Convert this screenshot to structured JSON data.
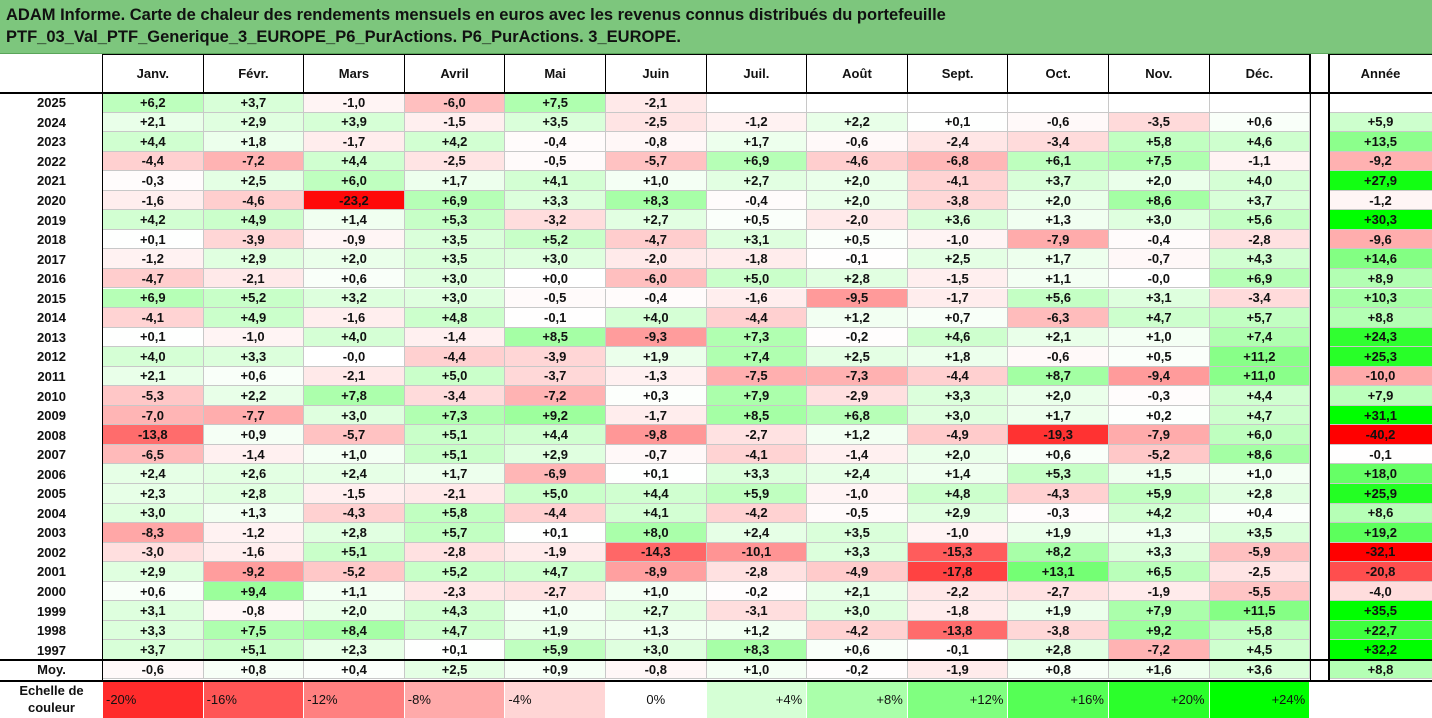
{
  "title": {
    "line1": "ADAM Informe. Carte de chaleur des rendements mensuels en euros avec les revenus connus distribués du portefeuille",
    "line2": "PTF_03_Val_PTF_Generique_3_EUROPE_P6_PurActions. P6_PurActions. 3_EUROPE."
  },
  "chart_data": {
    "type": "heatmap",
    "columns": [
      "Janv.",
      "Févr.",
      "Mars",
      "Avril",
      "Mai",
      "Juin",
      "Juil.",
      "Août",
      "Sept.",
      "Oct.",
      "Nov.",
      "Déc."
    ],
    "year_column": "Année",
    "rows": [
      {
        "year": "2025",
        "months": [
          "+6,2",
          "+3,7",
          "-1,0",
          "-6,0",
          "+7,5",
          "-2,1",
          "",
          "",
          "",
          "",
          "",
          ""
        ],
        "annual": ""
      },
      {
        "year": "2024",
        "months": [
          "+2,1",
          "+2,9",
          "+3,9",
          "-1,5",
          "+3,5",
          "-2,5",
          "-1,2",
          "+2,2",
          "+0,1",
          "-0,6",
          "-3,5",
          "+0,6"
        ],
        "annual": "+5,9"
      },
      {
        "year": "2023",
        "months": [
          "+4,4",
          "+1,8",
          "-1,7",
          "+4,2",
          "-0,4",
          "-0,8",
          "+1,7",
          "-0,6",
          "-2,4",
          "-3,4",
          "+5,8",
          "+4,6"
        ],
        "annual": "+13,5"
      },
      {
        "year": "2022",
        "months": [
          "-4,4",
          "-7,2",
          "+4,4",
          "-2,5",
          "-0,5",
          "-5,7",
          "+6,9",
          "-4,6",
          "-6,8",
          "+6,1",
          "+7,5",
          "-1,1"
        ],
        "annual": "-9,2"
      },
      {
        "year": "2021",
        "months": [
          "-0,3",
          "+2,5",
          "+6,0",
          "+1,7",
          "+4,1",
          "+1,0",
          "+2,7",
          "+2,0",
          "-4,1",
          "+3,7",
          "+2,0",
          "+4,0"
        ],
        "annual": "+27,9"
      },
      {
        "year": "2020",
        "months": [
          "-1,6",
          "-4,6",
          "-23,2",
          "+6,9",
          "+3,3",
          "+8,3",
          "-0,4",
          "+2,0",
          "-3,8",
          "+2,0",
          "+8,6",
          "+3,7"
        ],
        "annual": "-1,2"
      },
      {
        "year": "2019",
        "months": [
          "+4,2",
          "+4,9",
          "+1,4",
          "+5,3",
          "-3,2",
          "+2,7",
          "+0,5",
          "-2,0",
          "+3,6",
          "+1,3",
          "+3,0",
          "+5,6"
        ],
        "annual": "+30,3"
      },
      {
        "year": "2018",
        "months": [
          "+0,1",
          "-3,9",
          "-0,9",
          "+3,5",
          "+5,2",
          "-4,7",
          "+3,1",
          "+0,5",
          "-1,0",
          "-7,9",
          "-0,4",
          "-2,8"
        ],
        "annual": "-9,6"
      },
      {
        "year": "2017",
        "months": [
          "-1,2",
          "+2,9",
          "+2,0",
          "+3,5",
          "+3,0",
          "-2,0",
          "-1,8",
          "-0,1",
          "+2,5",
          "+1,7",
          "-0,7",
          "+4,3"
        ],
        "annual": "+14,6"
      },
      {
        "year": "2016",
        "months": [
          "-4,7",
          "-2,1",
          "+0,6",
          "+3,0",
          "+0,0",
          "-6,0",
          "+5,0",
          "+2,8",
          "-1,5",
          "+1,1",
          "-0,0",
          "+6,9"
        ],
        "annual": "+8,9"
      },
      {
        "year": "2015",
        "months": [
          "+6,9",
          "+5,2",
          "+3,2",
          "+3,0",
          "-0,5",
          "-0,4",
          "-1,6",
          "-9,5",
          "-1,7",
          "+5,6",
          "+3,1",
          "-3,4"
        ],
        "annual": "+10,3"
      },
      {
        "year": "2014",
        "months": [
          "-4,1",
          "+4,9",
          "-1,6",
          "+4,8",
          "-0,1",
          "+4,0",
          "-4,4",
          "+1,2",
          "+0,7",
          "-6,3",
          "+4,7",
          "+5,7"
        ],
        "annual": "+8,8"
      },
      {
        "year": "2013",
        "months": [
          "+0,1",
          "-1,0",
          "+4,0",
          "-1,4",
          "+8,5",
          "-9,3",
          "+7,3",
          "-0,2",
          "+4,6",
          "+2,1",
          "+1,0",
          "+7,4"
        ],
        "annual": "+24,3"
      },
      {
        "year": "2012",
        "months": [
          "+4,0",
          "+3,3",
          "-0,0",
          "-4,4",
          "-3,9",
          "+1,9",
          "+7,4",
          "+2,5",
          "+1,8",
          "-0,6",
          "+0,5",
          "+11,2"
        ],
        "annual": "+25,3"
      },
      {
        "year": "2011",
        "months": [
          "+2,1",
          "+0,6",
          "-2,1",
          "+5,0",
          "-3,7",
          "-1,3",
          "-7,5",
          "-7,3",
          "-4,4",
          "+8,7",
          "-9,4",
          "+11,0"
        ],
        "annual": "-10,0"
      },
      {
        "year": "2010",
        "months": [
          "-5,3",
          "+2,2",
          "+7,8",
          "-3,4",
          "-7,2",
          "+0,3",
          "+7,9",
          "-2,9",
          "+3,3",
          "+2,0",
          "-0,3",
          "+4,4"
        ],
        "annual": "+7,9"
      },
      {
        "year": "2009",
        "months": [
          "-7,0",
          "-7,7",
          "+3,0",
          "+7,3",
          "+9,2",
          "-1,7",
          "+8,5",
          "+6,8",
          "+3,0",
          "+1,7",
          "+0,2",
          "+4,7"
        ],
        "annual": "+31,1"
      },
      {
        "year": "2008",
        "months": [
          "-13,8",
          "+0,9",
          "-5,7",
          "+5,1",
          "+4,4",
          "-9,8",
          "-2,7",
          "+1,2",
          "-4,9",
          "-19,3",
          "-7,9",
          "+6,0"
        ],
        "annual": "-40,2"
      },
      {
        "year": "2007",
        "months": [
          "-6,5",
          "-1,4",
          "+1,0",
          "+5,1",
          "+2,9",
          "-0,7",
          "-4,1",
          "-1,4",
          "+2,0",
          "+0,6",
          "-5,2",
          "+8,6"
        ],
        "annual": "-0,1"
      },
      {
        "year": "2006",
        "months": [
          "+2,4",
          "+2,6",
          "+2,4",
          "+1,7",
          "-6,9",
          "+0,1",
          "+3,3",
          "+2,4",
          "+1,4",
          "+5,3",
          "+1,5",
          "+1,0"
        ],
        "annual": "+18,0"
      },
      {
        "year": "2005",
        "months": [
          "+2,3",
          "+2,8",
          "-1,5",
          "-2,1",
          "+5,0",
          "+4,4",
          "+5,9",
          "-1,0",
          "+4,8",
          "-4,3",
          "+5,9",
          "+2,8"
        ],
        "annual": "+25,9"
      },
      {
        "year": "2004",
        "months": [
          "+3,0",
          "+1,3",
          "-4,3",
          "+5,8",
          "-4,4",
          "+4,1",
          "-4,2",
          "-0,5",
          "+2,9",
          "-0,3",
          "+4,2",
          "+0,4"
        ],
        "annual": "+8,6"
      },
      {
        "year": "2003",
        "months": [
          "-8,3",
          "-1,2",
          "+2,8",
          "+5,7",
          "+0,1",
          "+8,0",
          "+2,4",
          "+3,5",
          "-1,0",
          "+1,9",
          "+1,3",
          "+3,5"
        ],
        "annual": "+19,2"
      },
      {
        "year": "2002",
        "months": [
          "-3,0",
          "-1,6",
          "+5,1",
          "-2,8",
          "-1,9",
          "-14,3",
          "-10,1",
          "+3,3",
          "-15,3",
          "+8,2",
          "+3,3",
          "-5,9"
        ],
        "annual": "-32,1"
      },
      {
        "year": "2001",
        "months": [
          "+2,9",
          "-9,2",
          "-5,2",
          "+5,2",
          "+4,7",
          "-8,9",
          "-2,8",
          "-4,9",
          "-17,8",
          "+13,1",
          "+6,5",
          "-2,5"
        ],
        "annual": "-20,8"
      },
      {
        "year": "2000",
        "months": [
          "+0,6",
          "+9,4",
          "+1,1",
          "-2,3",
          "-2,7",
          "+1,0",
          "-0,2",
          "+2,1",
          "-2,2",
          "-2,7",
          "-1,9",
          "-5,5"
        ],
        "annual": "-4,0"
      },
      {
        "year": "1999",
        "months": [
          "+3,1",
          "-0,8",
          "+2,0",
          "+4,3",
          "+1,0",
          "+2,7",
          "-3,1",
          "+3,0",
          "-1,8",
          "+1,9",
          "+7,9",
          "+11,5"
        ],
        "annual": "+35,5"
      },
      {
        "year": "1998",
        "months": [
          "+3,3",
          "+7,5",
          "+8,4",
          "+4,7",
          "+1,9",
          "+1,3",
          "+1,2",
          "-4,2",
          "-13,8",
          "-3,8",
          "+9,2",
          "+5,8"
        ],
        "annual": "+22,7"
      },
      {
        "year": "1997",
        "months": [
          "+3,7",
          "+5,1",
          "+2,3",
          "+0,1",
          "+5,9",
          "+3,0",
          "+8,3",
          "+0,6",
          "-0,1",
          "+2,8",
          "-7,2",
          "+4,5"
        ],
        "annual": "+32,2"
      }
    ],
    "average": {
      "label": "Moy.",
      "months": [
        "-0,6",
        "+0,8",
        "+0,4",
        "+2,5",
        "+0,9",
        "-0,8",
        "+1,0",
        "-0,2",
        "-1,9",
        "+0,8",
        "+1,6",
        "+3,6"
      ],
      "annual": "+8,8"
    },
    "color_scale": {
      "label": "Echelle de couleur",
      "stops": [
        "-20%",
        "-16%",
        "-12%",
        "-8%",
        "-4%",
        "0%",
        "+4%",
        "+8%",
        "+12%",
        "+16%",
        "+20%",
        "+24%"
      ],
      "negative_color": "#ff0000",
      "positive_color": "#00ff00",
      "neutral_color": "#ffffff"
    }
  },
  "colors": {
    "title_band": "#7dc67d"
  }
}
